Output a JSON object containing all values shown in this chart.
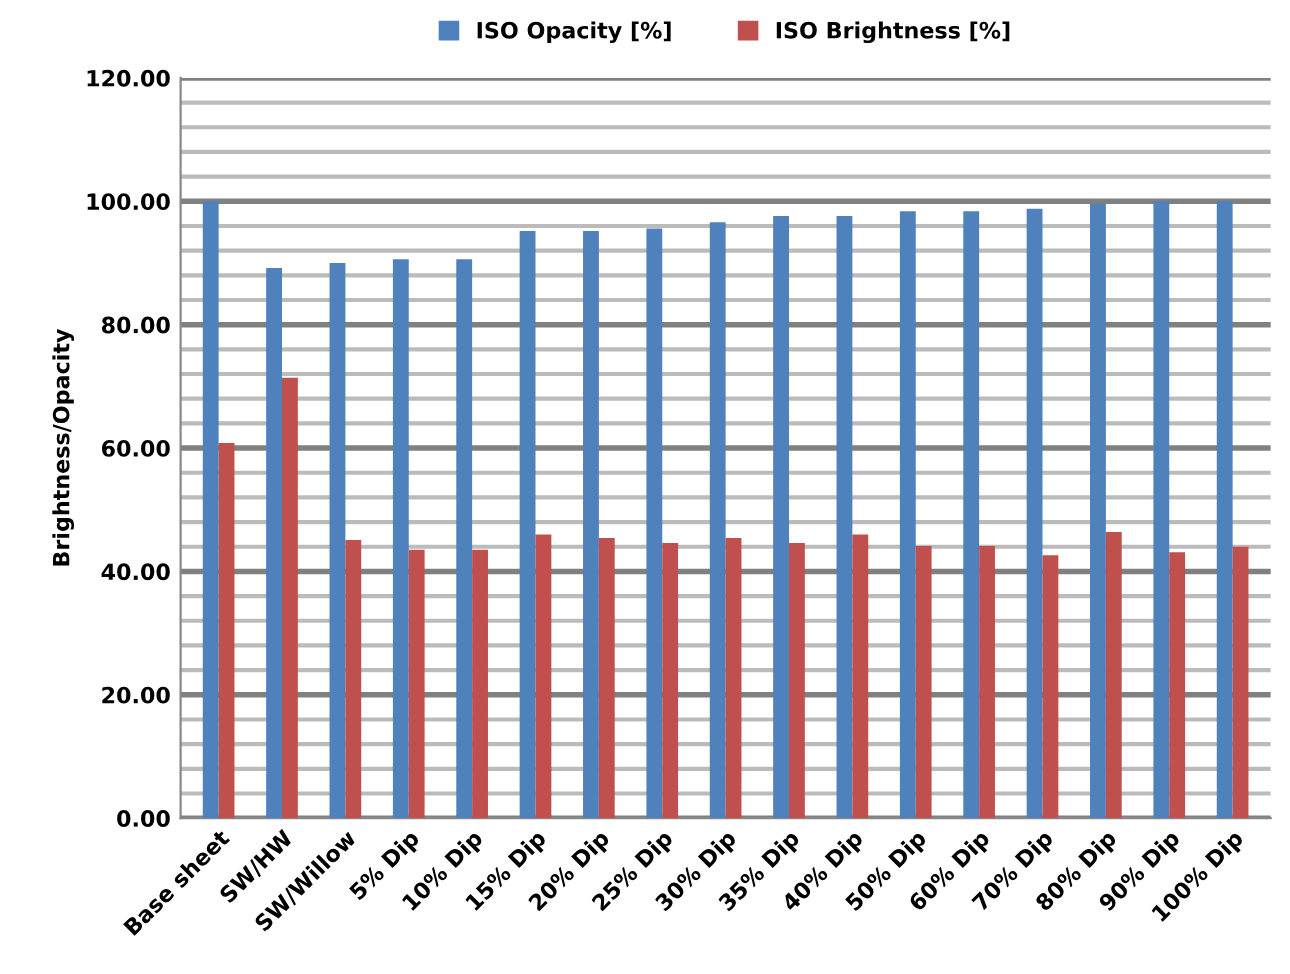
{
  "chart_data": {
    "type": "bar",
    "ylabel": "Brightness/Opacity",
    "categories": [
      "Base sheet",
      "SW/HW",
      "SW/Willow",
      "5% Dip",
      "10% Dip",
      "15% Dip",
      "20% Dip",
      "25% Dip",
      "30% Dip",
      "35% Dip",
      "40% Dip",
      "50% Dip",
      "60% Dip",
      "70% Dip",
      "80% Dip",
      "90% Dip",
      "100% Dip"
    ],
    "series": [
      {
        "name": "ISO Opacity [%]",
        "color": "#4f81bd",
        "values": [
          100,
          89.2,
          90,
          90.6,
          90.6,
          95.2,
          95.2,
          95.6,
          96.6,
          97.6,
          97.6,
          98.4,
          98.4,
          98.8,
          99.6,
          100,
          100
        ]
      },
      {
        "name": "ISO Brightness [%]",
        "color": "#c0504d",
        "values": [
          60.8,
          71.4,
          45.1,
          43.5,
          43.5,
          46,
          45.4,
          44.6,
          45.4,
          44.6,
          46,
          44.1,
          44.1,
          42.6,
          46.4,
          43.1,
          44
        ]
      }
    ],
    "ylim": [
      0,
      120
    ],
    "yticks": [
      {
        "value": 0,
        "label": "0.00"
      },
      {
        "value": 4,
        "label": null
      },
      {
        "value": 8,
        "label": null
      },
      {
        "value": 12,
        "label": null
      },
      {
        "value": 16,
        "label": null
      },
      {
        "value": 20,
        "label": "20.00"
      },
      {
        "value": 24,
        "label": null
      },
      {
        "value": 28,
        "label": null
      },
      {
        "value": 32,
        "label": null
      },
      {
        "value": 36,
        "label": null
      },
      {
        "value": 40,
        "label": "40.00"
      },
      {
        "value": 44,
        "label": null
      },
      {
        "value": 48,
        "label": null
      },
      {
        "value": 52,
        "label": null
      },
      {
        "value": 56,
        "label": null
      },
      {
        "value": 60,
        "label": "60.00"
      },
      {
        "value": 64,
        "label": null
      },
      {
        "value": 68,
        "label": null
      },
      {
        "value": 72,
        "label": null
      },
      {
        "value": 76,
        "label": null
      },
      {
        "value": 80,
        "label": "80.00"
      },
      {
        "value": 84,
        "label": null
      },
      {
        "value": 88,
        "label": null
      },
      {
        "value": 92,
        "label": null
      },
      {
        "value": 96,
        "label": null
      },
      {
        "value": 100,
        "label": "100.00"
      },
      {
        "value": 104,
        "label": null
      },
      {
        "value": 108,
        "label": null
      },
      {
        "value": 112,
        "label": null
      },
      {
        "value": 116,
        "label": null
      },
      {
        "value": 120,
        "label": "120.00"
      }
    ],
    "grid": "y",
    "legend": "top"
  }
}
